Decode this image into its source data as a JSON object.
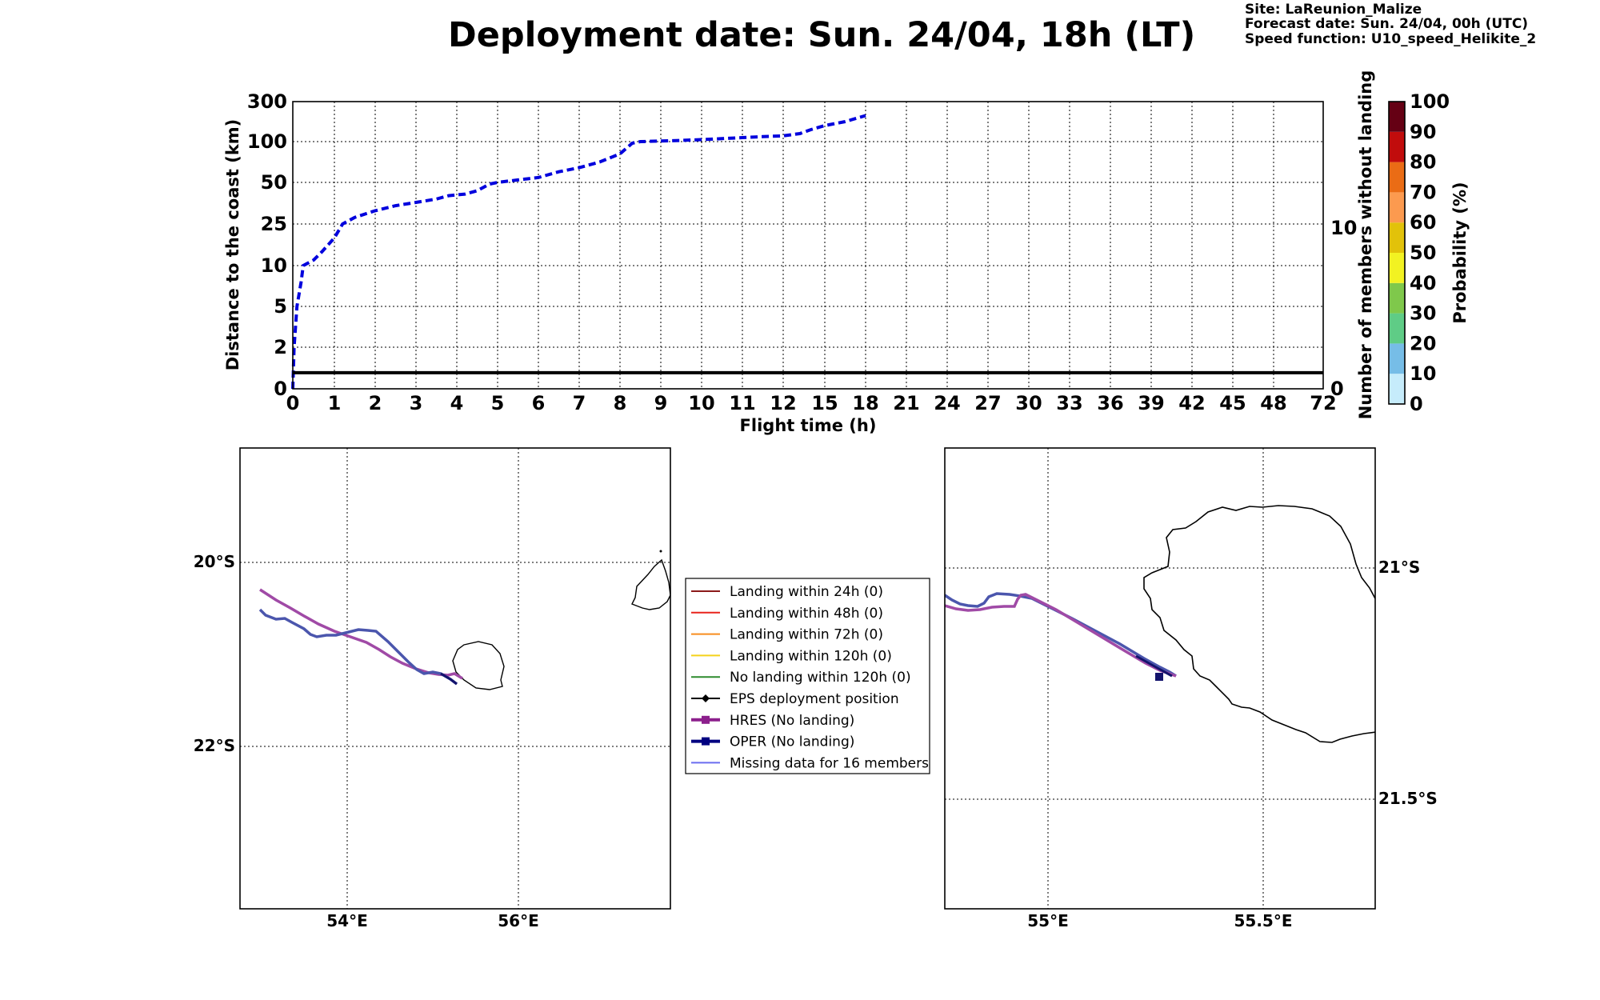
{
  "header": {
    "title": "Deployment date: Sun. 24/04, 18h (LT)",
    "site": "Site: LaReunion_Malize",
    "forecast": "Forecast date: Sun. 24/04, 00h (UTC)",
    "speed_function": "Speed function: U10_speed_Helikite_2"
  },
  "chart_data": [
    {
      "type": "line",
      "xlabel": "Flight time (h)",
      "ylabel": "Distance to the coast (km)",
      "y2label": "Number of members without landing",
      "xlim": [
        0,
        72
      ],
      "x_ticks": [
        "0",
        "1",
        "2",
        "3",
        "4",
        "5",
        "6",
        "7",
        "8",
        "9",
        "10",
        "11",
        "12",
        "15",
        "18",
        "21",
        "24",
        "27",
        "30",
        "33",
        "36",
        "39",
        "42",
        "45",
        "48",
        "72"
      ],
      "y_ticks": [
        "0",
        "2",
        "5",
        "10",
        "25",
        "50",
        "100",
        "300"
      ],
      "y2_ticks": [
        "0",
        "10"
      ],
      "grid": true,
      "series": [
        {
          "style": "dashed",
          "color": "#0000dd",
          "x": [
            0,
            0.03,
            0.1,
            0.2,
            0.25,
            0.5,
            0.7,
            1.0,
            1.2,
            1.5,
            2.0,
            2.5,
            3.0,
            3.5,
            3.8,
            4.2,
            4.5,
            4.8,
            5.0,
            5.5,
            6.0,
            6.5,
            7.0,
            7.5,
            8.0,
            8.3,
            8.5,
            9.0,
            9.5,
            10.0,
            10.5,
            11.0,
            11.5,
            12.0,
            13.2,
            14.0,
            15.0,
            16.5,
            18.0
          ],
          "y": [
            0,
            2,
            5,
            8,
            10,
            12,
            15,
            20,
            25,
            29,
            33,
            36,
            38,
            40,
            42,
            43,
            45,
            49,
            50,
            53,
            56,
            63,
            68,
            75,
            85,
            98,
            100,
            103,
            106,
            110,
            115,
            120,
            125,
            129,
            140,
            160,
            180,
            200,
            230
          ]
        },
        {
          "style": "solid",
          "color": "#000000",
          "axis": "right",
          "x": [
            0,
            72
          ],
          "y": [
            1,
            1
          ]
        }
      ]
    },
    {
      "type": "colorbar",
      "label": "Probability (%)",
      "ticks": [
        "0",
        "10",
        "20",
        "30",
        "40",
        "50",
        "60",
        "70",
        "80",
        "90",
        "100"
      ],
      "colors": [
        "#c6ecfb",
        "#76bde7",
        "#5fcc86",
        "#7fc84b",
        "#f2f222",
        "#e2c20a",
        "#fc9a4f",
        "#ea6c15",
        "#c10c0c",
        "#650014"
      ]
    }
  ],
  "maps": {
    "left": {
      "lat_labels": [
        "20°S",
        "22°S"
      ],
      "lon_labels": [
        "54°E",
        "56°E"
      ]
    },
    "right": {
      "lat_labels": [
        "21°S",
        "21.5°S"
      ],
      "lon_labels": [
        "55°E",
        "55.5°E"
      ]
    }
  },
  "legend": [
    {
      "label": "Landing within 24h (0)",
      "color": "#8b1a1a",
      "marker": "none",
      "width": 2
    },
    {
      "label": "Landing within 48h (0)",
      "color": "#e8241c",
      "marker": "none",
      "width": 2
    },
    {
      "label": "Landing within 72h (0)",
      "color": "#f88c1e",
      "marker": "none",
      "width": 2
    },
    {
      "label": "Landing within 120h (0)",
      "color": "#f5d21a",
      "marker": "none",
      "width": 2
    },
    {
      "label": "No landing within 120h (0)",
      "color": "#2e8b2e",
      "marker": "none",
      "width": 2
    },
    {
      "label": "EPS deployment position",
      "color": "#000000",
      "marker": "diamond",
      "width": 2
    },
    {
      "label": "HRES (No landing)",
      "color": "#8c1f8c",
      "marker": "square",
      "width": 4
    },
    {
      "label": "OPER (No landing)",
      "color": "#000080",
      "marker": "square",
      "width": 4
    },
    {
      "label": "Missing data for 16 members",
      "color": "#6a6cf0",
      "marker": "none",
      "width": 2
    }
  ],
  "tracks": {
    "hres_color": "#a04aa6",
    "oper_color": "#4b56ad",
    "end_color": "#13136c"
  }
}
